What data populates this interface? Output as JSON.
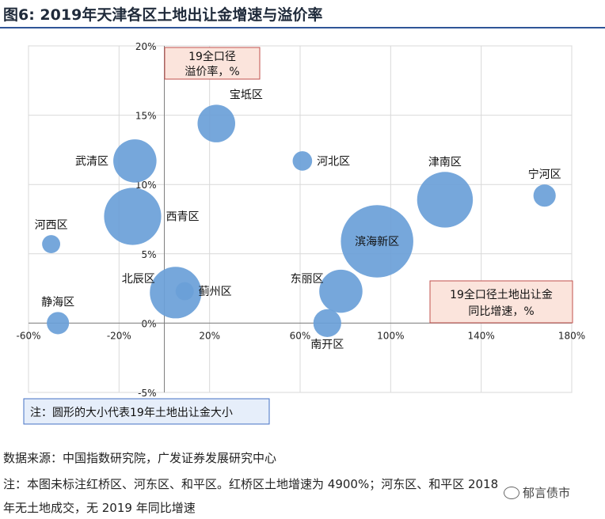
{
  "header": {
    "title": "图6:  2019年天津各区土地出让金增速与溢价率"
  },
  "chart_data": {
    "type": "scatter",
    "title": "2019年天津各区土地出让金增速与溢价率",
    "xlabel": "19全口径土地出让金同比增速，%",
    "ylabel": "19全口径溢价率，%",
    "xlim": [
      -60,
      180
    ],
    "ylim": [
      -5,
      20
    ],
    "x_ticks": [
      "-60%",
      "-20%",
      "20%",
      "60%",
      "100%",
      "140%",
      "180%"
    ],
    "x_tick_values": [
      -60,
      -20,
      20,
      60,
      100,
      140,
      180
    ],
    "y_ticks": [
      "20%",
      "15%",
      "10%",
      "5%",
      "0%",
      "-5%"
    ],
    "y_tick_values": [
      20,
      15,
      10,
      5,
      0,
      -5
    ],
    "grid": true,
    "bubble_color": "#6a9fd8",
    "size_legend": "注：圆形的大小代表19年土地出让金大小",
    "x_axis_box": {
      "line1": "19全口径土地出让金",
      "line2": "同比增速，%"
    },
    "y_axis_box": {
      "line1": "19全口径",
      "line2": "溢价率，%"
    },
    "points": [
      {
        "name": "宝坻区",
        "x": 23,
        "y": 14.4,
        "size": 27
      },
      {
        "name": "武清区",
        "x": -13,
        "y": 11.7,
        "size": 31
      },
      {
        "name": "河北区",
        "x": 61,
        "y": 11.7,
        "size": 14
      },
      {
        "name": "津南区",
        "x": 124,
        "y": 8.9,
        "size": 40
      },
      {
        "name": "宁河区",
        "x": 168,
        "y": 9.2,
        "size": 16
      },
      {
        "name": "西青区",
        "x": -14,
        "y": 7.7,
        "size": 41
      },
      {
        "name": "河西区",
        "x": -50,
        "y": 5.7,
        "size": 13
      },
      {
        "name": "滨海新区",
        "x": 94,
        "y": 5.9,
        "size": 52
      },
      {
        "name": "北辰区",
        "x": 5,
        "y": 2.2,
        "size": 37
      },
      {
        "name": "蓟州区",
        "x": 9,
        "y": 2.3,
        "size": 13
      },
      {
        "name": "东丽区",
        "x": 78,
        "y": 2.3,
        "size": 31
      },
      {
        "name": "静海区",
        "x": -47,
        "y": 0.0,
        "size": 16
      },
      {
        "name": "南开区",
        "x": 72,
        "y": 0.0,
        "size": 20
      }
    ]
  },
  "footer": {
    "source": "数据来源：中国指数研究院，广发证券发展研究中心",
    "note_line1": "注：本图未标注红桥区、河东区、和平区。红桥区土地增速为 4900%；河东区、和平区 2018",
    "note_line2": "年无土地成交，无 2019 年同比增速",
    "watermark": "郁言债市"
  }
}
